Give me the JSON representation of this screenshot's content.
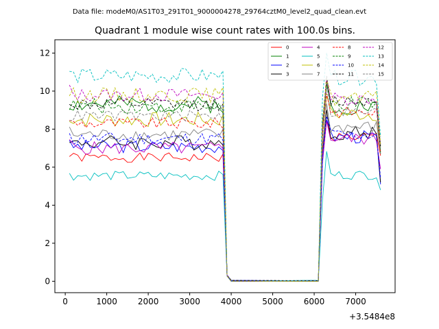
{
  "header": {
    "file_label": "Data file: modeM0/AS1T03_291T01_9000004278_29764cztM0_level2_quad_clean.evt"
  },
  "chart_data": {
    "type": "line",
    "title": "Quadrant 1 module wise count rates with 100.0s bins.",
    "xlabel": "",
    "ylabel": "",
    "x_offset_label": "+3.5484e8",
    "xlim": [
      -250,
      7950
    ],
    "ylim": [
      -0.6,
      12.7
    ],
    "x_ticks": [
      0,
      1000,
      2000,
      3000,
      4000,
      5000,
      6000,
      7000
    ],
    "x_tick_labels": [
      "0",
      "1000",
      "2000",
      "3000",
      "4000",
      "5000",
      "6000",
      "7000"
    ],
    "y_ticks": [
      0,
      2,
      4,
      6,
      8,
      10,
      12
    ],
    "y_tick_labels": [
      "0",
      "2",
      "4",
      "6",
      "8",
      "10",
      "12"
    ],
    "grid": false,
    "legend_position": "top-right",
    "segments": [
      {
        "x_start": 100,
        "x_end": 3800,
        "step": 100
      },
      {
        "x_start": 6200,
        "x_end": 7600,
        "step": 100
      }
    ],
    "transition": {
      "x": [
        3800,
        3900,
        4000,
        6100,
        6200
      ],
      "y": [
        null,
        0.3,
        0.02,
        0.02,
        null
      ]
    },
    "series": [
      {
        "name": "0",
        "color": "#ff0000",
        "dash": "solid",
        "base1": 6.5,
        "base2": 7.6,
        "end": 6.6,
        "amp": 0.25,
        "seed": 1
      },
      {
        "name": "1",
        "color": "#008000",
        "dash": "solid",
        "base1": 9.3,
        "base2": 9.2,
        "end": 6.7,
        "amp": 0.45,
        "seed": 2
      },
      {
        "name": "2",
        "color": "#0000ff",
        "dash": "solid",
        "base1": 7.1,
        "base2": 7.6,
        "end": 5.1,
        "amp": 0.35,
        "seed": 3
      },
      {
        "name": "3",
        "color": "#000000",
        "dash": "solid",
        "base1": 7.3,
        "base2": 7.8,
        "end": 5.2,
        "amp": 0.4,
        "seed": 4
      },
      {
        "name": "4",
        "color": "#bf00bf",
        "dash": "solid",
        "base1": 7.0,
        "base2": 7.5,
        "end": 5.9,
        "amp": 0.35,
        "seed": 5
      },
      {
        "name": "5",
        "color": "#00bfbf",
        "dash": "solid",
        "base1": 5.55,
        "base2": 5.6,
        "end": 4.8,
        "amp": 0.25,
        "seed": 6
      },
      {
        "name": "6",
        "color": "#bfbf00",
        "dash": "solid",
        "base1": 8.5,
        "base2": 8.8,
        "end": 7.0,
        "amp": 0.4,
        "seed": 7
      },
      {
        "name": "7",
        "color": "#808080",
        "dash": "solid",
        "base1": 7.7,
        "base2": 8.1,
        "end": 6.7,
        "amp": 0.35,
        "seed": 8
      },
      {
        "name": "8",
        "color": "#ff0000",
        "dash": "dashed",
        "base1": 8.3,
        "base2": 8.9,
        "end": 6.8,
        "amp": 0.3,
        "seed": 9
      },
      {
        "name": "9",
        "color": "#008000",
        "dash": "dashed",
        "base1": 9.2,
        "base2": 9.3,
        "end": 6.8,
        "amp": 0.4,
        "seed": 10
      },
      {
        "name": "10",
        "color": "#0000ff",
        "dash": "dashed",
        "base1": 7.5,
        "base2": 7.7,
        "end": 5.4,
        "amp": 0.35,
        "seed": 11
      },
      {
        "name": "11",
        "color": "#000000",
        "dash": "dashed",
        "base1": 9.3,
        "base2": 9.5,
        "end": 7.1,
        "amp": 0.35,
        "seed": 12
      },
      {
        "name": "12",
        "color": "#bf00bf",
        "dash": "dashed",
        "base1": 9.8,
        "base2": 9.6,
        "end": 7.2,
        "amp": 0.35,
        "seed": 13
      },
      {
        "name": "13",
        "color": "#00bfbf",
        "dash": "dashed",
        "base1": 10.8,
        "base2": 10.7,
        "end": 7.6,
        "amp": 0.4,
        "seed": 14
      },
      {
        "name": "14",
        "color": "#bfbf00",
        "dash": "dashed",
        "base1": 9.8,
        "base2": 9.6,
        "end": 7.2,
        "amp": 0.4,
        "seed": 15
      },
      {
        "name": "15",
        "color": "#808080",
        "dash": "dashed",
        "base1": 8.7,
        "base2": 8.9,
        "end": 6.9,
        "amp": 0.3,
        "seed": 16
      }
    ]
  }
}
